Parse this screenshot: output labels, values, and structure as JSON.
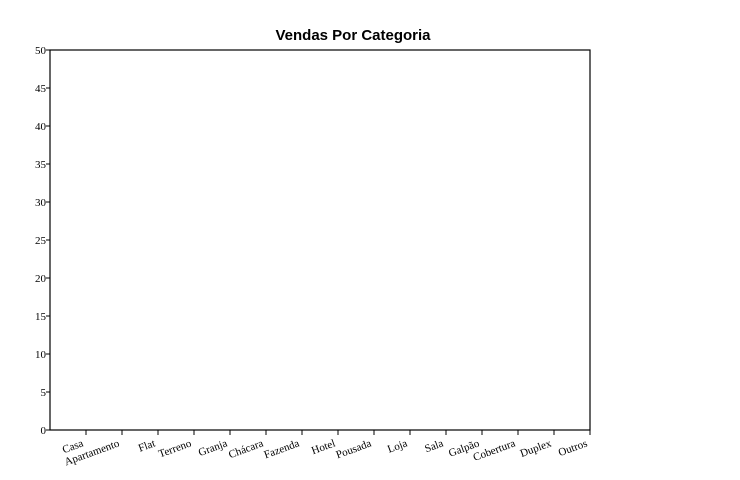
{
  "chart_data": {
    "type": "bar",
    "title": "Vendas Por Categoria",
    "xlabel": "",
    "ylabel": "",
    "categories": [
      "Casa",
      "Apartamento",
      "Flat",
      "Terreno",
      "Granja",
      "Chácara",
      "Fazenda",
      "Hotel",
      "Pousada",
      "Loja",
      "Sala",
      "Galpão",
      "Cobertura",
      "Duplex",
      "Outros"
    ],
    "values": [
      0,
      0,
      0,
      0,
      0,
      0,
      0,
      0,
      0,
      0,
      0,
      0,
      0,
      0,
      0
    ],
    "ylim": [
      0,
      50
    ],
    "yticks": [
      0,
      5,
      10,
      15,
      20,
      25,
      30,
      35,
      40,
      45,
      50
    ],
    "grid": false,
    "legend": "none",
    "colors": {
      "axis": "#000000",
      "background": "#ffffff",
      "bar": "#4472c4"
    }
  }
}
